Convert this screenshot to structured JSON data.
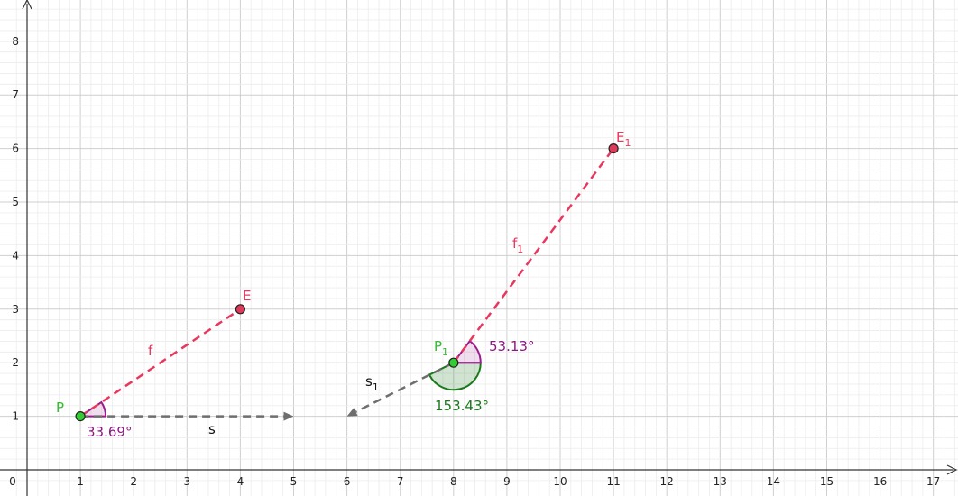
{
  "axes": {
    "x_ticks": [
      "0",
      "1",
      "2",
      "3",
      "4",
      "5",
      "6",
      "7",
      "8",
      "9",
      "10",
      "11",
      "12",
      "13",
      "14",
      "15",
      "16",
      "17"
    ],
    "y_ticks": [
      "1",
      "2",
      "3",
      "4",
      "5",
      "6",
      "7",
      "8"
    ],
    "grid": true,
    "minor_grid": true
  },
  "colors": {
    "point_green": "#33cc33",
    "point_red": "#e03a5a",
    "segment_red": "#e8375f",
    "vector_gray": "#6e6e6e",
    "angle_purple": "#9b1b8f",
    "angle_green": "#1a7a1a"
  },
  "points": {
    "P": {
      "name": "P",
      "sub": "",
      "x": 1,
      "y": 1
    },
    "E": {
      "name": "E",
      "sub": "",
      "x": 4,
      "y": 3
    },
    "P1": {
      "name": "P",
      "sub": "1",
      "x": 8,
      "y": 2
    },
    "E1": {
      "name": "E",
      "sub": "1",
      "x": 11,
      "y": 6
    }
  },
  "segments": {
    "f": {
      "name": "f",
      "sub": ""
    },
    "f1": {
      "name": "f",
      "sub": "1"
    }
  },
  "vectors": {
    "s": {
      "name": "s",
      "sub": "",
      "from": [
        1,
        1
      ],
      "to": [
        5,
        1
      ]
    },
    "s1": {
      "name": "s",
      "sub": "1",
      "from": [
        8,
        2
      ],
      "to": [
        6,
        1
      ]
    }
  },
  "angles": {
    "a1": {
      "label": "33.69°"
    },
    "a2": {
      "label": "53.13°"
    },
    "a3": {
      "label": "153.43°"
    }
  }
}
